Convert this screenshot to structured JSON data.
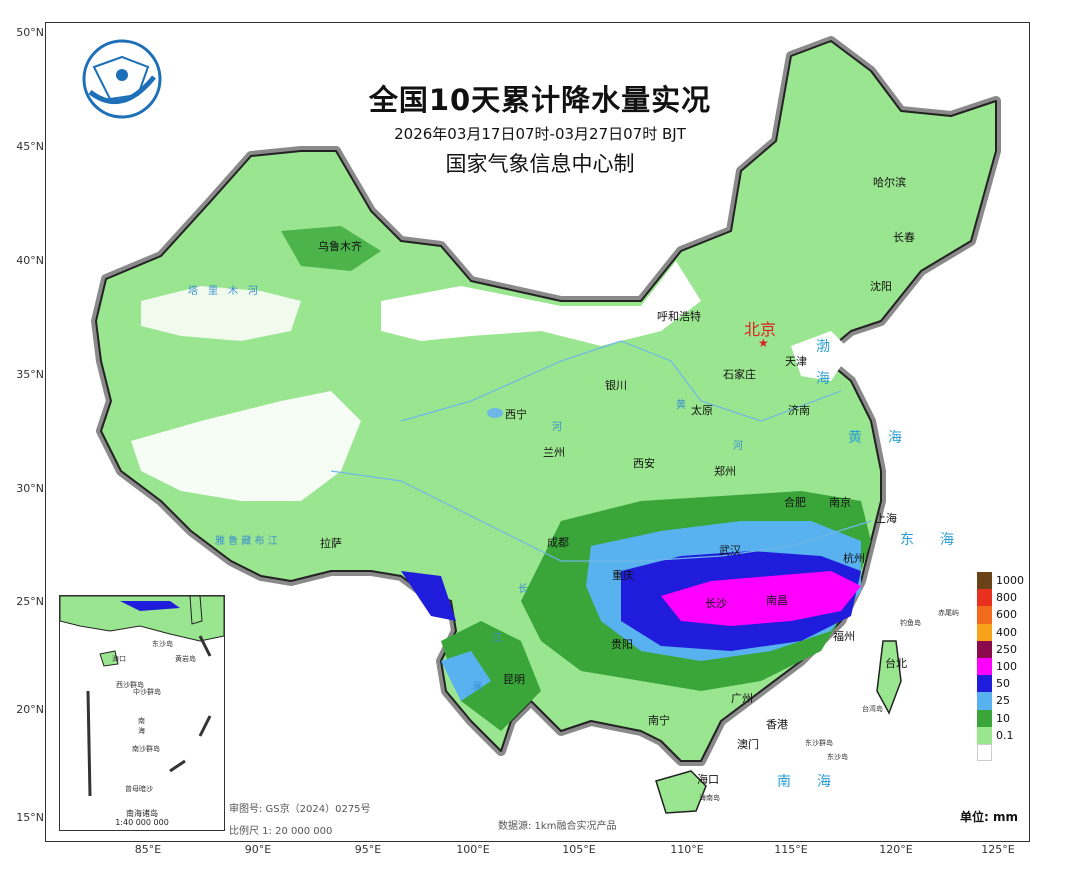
{
  "title": "全国10天累计降水量实况",
  "period": "2026年03月17日07时-03月27日07时 BJT",
  "producer": "国家气象信息中心制",
  "lat_ticks": [
    "50°N",
    "45°N",
    "40°N",
    "35°N",
    "30°N",
    "25°N",
    "20°N",
    "15°N"
  ],
  "lon_ticks": [
    "85°E",
    "90°E",
    "95°E",
    "100°E",
    "105°E",
    "110°E",
    "115°E",
    "120°E",
    "125°E"
  ],
  "capital": "北京",
  "cities": [
    "乌鲁木齐",
    "哈尔滨",
    "长春",
    "沈阳",
    "呼和浩特",
    "天津",
    "石家庄",
    "银川",
    "太原",
    "济南",
    "西宁",
    "兰州",
    "西安",
    "郑州",
    "合肥",
    "南京",
    "上海",
    "拉萨",
    "成都",
    "武汉",
    "杭州",
    "重庆",
    "长沙",
    "南昌",
    "贵阳",
    "福州",
    "台北",
    "昆明",
    "广州",
    "南宁",
    "香港",
    "澳门",
    "海口"
  ],
  "seas": [
    "渤",
    "海",
    "黄　海",
    "东　海",
    "南　海"
  ],
  "rivers": [
    "塔　里　木　河",
    "雅 鲁 藏 布 江",
    "黄",
    "河",
    "河",
    "长",
    "江",
    "澜"
  ],
  "islands": [
    "钓鱼岛",
    "赤尾屿",
    "台湾岛",
    "东沙群岛",
    "东沙岛",
    "海南岛"
  ],
  "inset": {
    "caption": "南海诸岛",
    "scale": "1:40 000 000",
    "labels": [
      "海口",
      "西沙群岛",
      "中沙群岛",
      "南",
      "海",
      "南沙群岛",
      "东沙岛",
      "黄岩岛",
      "曾母暗沙"
    ]
  },
  "review_number": "审图号: GS京（2024）0275号",
  "scale_text": "比例尺 1: 20 000 000",
  "data_source": "数据源: 1km融合实况产品",
  "unit_label": "单位: mm",
  "legend": [
    {
      "label": "1000",
      "color": "#6b4217"
    },
    {
      "label": "800",
      "color": "#e8301e"
    },
    {
      "label": "600",
      "color": "#f26a1c"
    },
    {
      "label": "400",
      "color": "#f7a21b"
    },
    {
      "label": "250",
      "color": "#8a0a4b"
    },
    {
      "label": "100",
      "color": "#ff00ff"
    },
    {
      "label": "50",
      "color": "#1f1ddb"
    },
    {
      "label": "25",
      "color": "#58b2f0"
    },
    {
      "label": "10",
      "color": "#3aa63a"
    },
    {
      "label": "0.1",
      "color": "#9ae58f"
    }
  ],
  "legend_bottom_color": "#ffffff",
  "colors": {
    "land_light": "#9ae58f",
    "land_medium": "#3aa63a",
    "rain_25": "#58b2f0",
    "rain_50": "#1f1ddb",
    "rain_100": "#ff00ff",
    "border": "#333333",
    "halo": "#8a8a8a",
    "water": "#6fb7e8"
  }
}
